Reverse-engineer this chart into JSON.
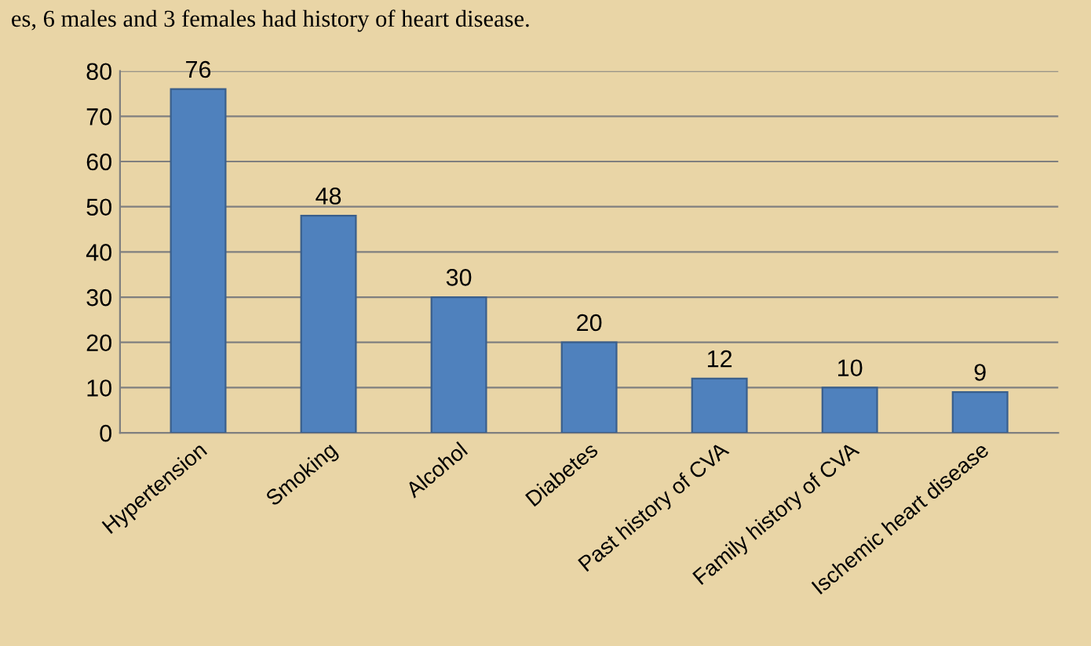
{
  "chart_data": {
    "type": "bar",
    "categories": [
      "Hypertension",
      "Smoking",
      "Alcohol",
      "Diabetes",
      "Past history of CVA",
      "Family history of CVA",
      "Ischemic heart disease"
    ],
    "values": [
      76,
      48,
      30,
      20,
      12,
      10,
      9
    ],
    "color": "#4f81bd",
    "ylim": [
      0,
      80
    ],
    "yticks": [
      0,
      10,
      20,
      30,
      40,
      50,
      60,
      70,
      80
    ],
    "grid": "y",
    "data_labels": true,
    "annotations": [
      "es, 6 males and 3 females had history of heart disease."
    ]
  }
}
